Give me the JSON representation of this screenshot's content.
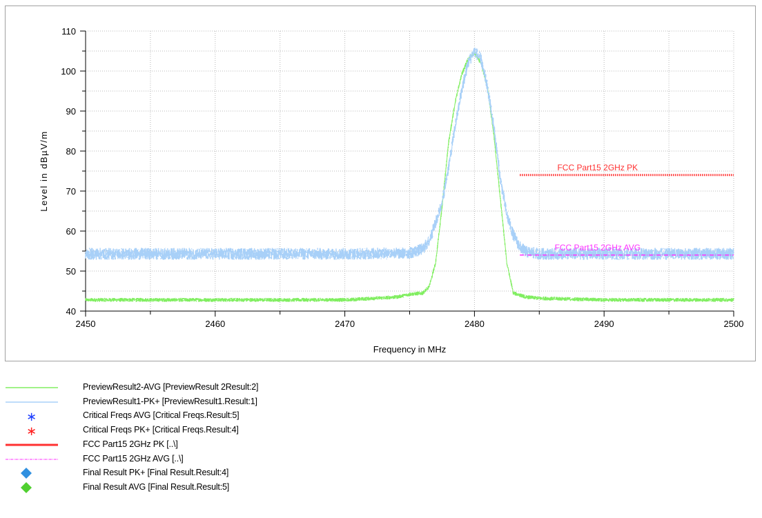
{
  "chart_data": {
    "type": "line",
    "xlabel": "Frequency in MHz",
    "ylabel": "Level in dBµV/m",
    "xlim": [
      2450,
      2500
    ],
    "ylim": [
      40,
      110
    ],
    "x_ticks": [
      2450,
      2460,
      2470,
      2480,
      2490,
      2500
    ],
    "y_ticks": [
      40,
      50,
      60,
      70,
      80,
      90,
      100,
      110
    ],
    "grid": true,
    "series": [
      {
        "name": "PreviewResult2-AVG",
        "color": "#80ee60",
        "style": "noisy-band",
        "band_halfwidth": 0.5,
        "x": [
          2450,
          2460,
          2470,
          2474,
          2475,
          2476,
          2476.5,
          2477,
          2477.5,
          2478,
          2478.5,
          2479,
          2479.5,
          2480,
          2480.5,
          2481,
          2481.5,
          2482,
          2482.5,
          2483,
          2484,
          2485,
          2490,
          2500
        ],
        "y": [
          42.8,
          42.8,
          42.8,
          43.5,
          44.2,
          44.5,
          46,
          52,
          66,
          82,
          92,
          99,
          103,
          104.5,
          102,
          96,
          84,
          68,
          52,
          44.5,
          43.5,
          43.2,
          42.8,
          42.8
        ]
      },
      {
        "name": "PreviewResult1-PK+",
        "color": "#a8d0f8",
        "style": "noisy-band",
        "band_halfwidth": 1.5,
        "x": [
          2450,
          2460,
          2470,
          2475,
          2476,
          2476.5,
          2477,
          2477.5,
          2478,
          2478.5,
          2479,
          2479.5,
          2480,
          2480.5,
          2481,
          2481.5,
          2482,
          2482.5,
          2483,
          2483.5,
          2484,
          2485,
          2490,
          2500
        ],
        "y": [
          54.3,
          54.3,
          54.3,
          54.5,
          55.5,
          57.5,
          62,
          67,
          76,
          86,
          95,
          102,
          105,
          103,
          96,
          86,
          73,
          64,
          59,
          56,
          54.8,
          54.3,
          54.3,
          54.3
        ]
      },
      {
        "name": "FCC Part15 2GHz PK",
        "color": "#ff3030",
        "style": "dotted",
        "x": [
          2483.5,
          2500
        ],
        "y": [
          74,
          74
        ]
      },
      {
        "name": "FCC Part15 2GHz AVG",
        "color": "#ff30ff",
        "style": "dashdot",
        "x": [
          2483.5,
          2500
        ],
        "y": [
          54,
          54
        ]
      }
    ],
    "annotations": [
      {
        "text": "FCC Part15 2GHz  PK",
        "x": 2489.5,
        "y": 75.2,
        "color": "#ff3030"
      },
      {
        "text": "FCC Part15 2GHz  AVG",
        "x": 2489.5,
        "y": 55.2,
        "color": "#ff30ff"
      }
    ]
  },
  "legend": [
    {
      "symbol": "line",
      "color": "#80ee60",
      "text": "PreviewResult2-AVG  [PreviewResult 2Result:2]"
    },
    {
      "symbol": "line",
      "color": "#a8d0f8",
      "text": "PreviewResult1-PK+  [PreviewResult1.Result:1]"
    },
    {
      "symbol": "star",
      "color": "#2040ff",
      "text": "Critical  Freqs AVG  [Critical  Freqs.Result:5]"
    },
    {
      "symbol": "star",
      "color": "#ff2020",
      "text": "Critical  Freqs PK+  [Critical  Freqs.Result:4]"
    },
    {
      "symbol": "thick-line",
      "color": "#ff3030",
      "text": "FCC Part15 2GHz  PK  [..\\]"
    },
    {
      "symbol": "dashdot-line",
      "color": "#ff30ff",
      "text": "FCC Part15 2GHz  AVG  [..\\]"
    },
    {
      "symbol": "diamond",
      "color": "#3090e0",
      "text": "Final  Result PK+  [Final  Result.Result:4]"
    },
    {
      "symbol": "diamond",
      "color": "#50d030",
      "text": "Final  Result AVG  [Final  Result.Result:5]"
    }
  ]
}
